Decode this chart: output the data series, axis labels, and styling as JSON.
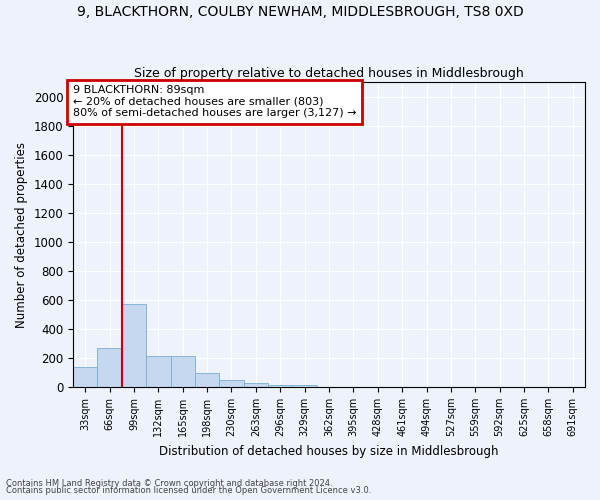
{
  "title1": "9, BLACKTHORN, COULBY NEWHAM, MIDDLESBROUGH, TS8 0XD",
  "title2": "Size of property relative to detached houses in Middlesbrough",
  "xlabel": "Distribution of detached houses by size in Middlesbrough",
  "ylabel": "Number of detached properties",
  "footer1": "Contains HM Land Registry data © Crown copyright and database right 2024.",
  "footer2": "Contains public sector information licensed under the Open Government Licence v3.0.",
  "bar_labels": [
    "33sqm",
    "66sqm",
    "99sqm",
    "132sqm",
    "165sqm",
    "198sqm",
    "230sqm",
    "263sqm",
    "296sqm",
    "329sqm",
    "362sqm",
    "395sqm",
    "428sqm",
    "461sqm",
    "494sqm",
    "527sqm",
    "559sqm",
    "592sqm",
    "625sqm",
    "658sqm",
    "691sqm"
  ],
  "bar_values": [
    135,
    265,
    570,
    215,
    215,
    95,
    50,
    25,
    15,
    10,
    0,
    0,
    0,
    0,
    0,
    0,
    0,
    0,
    0,
    0,
    0
  ],
  "bar_color": "#c5d8f0",
  "bar_edge_color": "#7aadd4",
  "red_line_after_index": 1,
  "annotation_text": "9 BLACKTHORN: 89sqm\n← 20% of detached houses are smaller (803)\n80% of semi-detached houses are larger (3,127) →",
  "annotation_box_color": "#ffffff",
  "annotation_box_edge": "#cc0000",
  "ylim": [
    0,
    2100
  ],
  "yticks": [
    0,
    200,
    400,
    600,
    800,
    1000,
    1200,
    1400,
    1600,
    1800,
    2000
  ],
  "bg_color": "#eef2fb",
  "grid_color": "#ffffff",
  "title_fontsize": 10,
  "subtitle_fontsize": 9,
  "figwidth": 6.0,
  "figheight": 5.0,
  "dpi": 100
}
